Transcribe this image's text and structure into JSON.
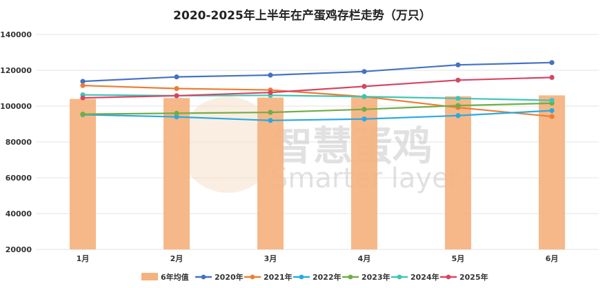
{
  "chart_data": {
    "type": "bar+line",
    "title": "2020-2025年上半年在产蛋鸡存栏走势（万只）",
    "categories": [
      "1月",
      "2月",
      "3月",
      "4月",
      "5月",
      "6月"
    ],
    "ylim": [
      20000,
      140000
    ],
    "yticks": [
      20000,
      40000,
      60000,
      80000,
      100000,
      120000,
      140000
    ],
    "grid": true,
    "legend_position": "bottom",
    "bar_series": {
      "name": "6年均值",
      "color": "#f5b27f",
      "values": [
        104000,
        104500,
        104800,
        105000,
        105500,
        106000
      ]
    },
    "series": [
      {
        "name": "2020年",
        "color": "#4472c4",
        "values": [
          113800,
          116300,
          117300,
          119300,
          123000,
          124300
        ]
      },
      {
        "name": "2021年",
        "color": "#ed7d31",
        "values": [
          111500,
          109800,
          109000,
          105300,
          99200,
          94200
        ]
      },
      {
        "name": "2022年",
        "color": "#29a9e1",
        "values": [
          95200,
          94000,
          92000,
          92800,
          94700,
          97500
        ]
      },
      {
        "name": "2023年",
        "color": "#70ad47",
        "values": [
          95500,
          96000,
          96500,
          98200,
          100300,
          101600
        ]
      },
      {
        "name": "2024年",
        "color": "#3ec5b4",
        "values": [
          106300,
          105800,
          106000,
          105300,
          104300,
          103200
        ]
      },
      {
        "name": "2025年",
        "color": "#d64564",
        "values": [
          104600,
          105800,
          107600,
          111000,
          114500,
          116000
        ]
      }
    ]
  },
  "watermark": {
    "text_cn": "智慧蛋鸡",
    "text_en": "Smarter layer"
  }
}
